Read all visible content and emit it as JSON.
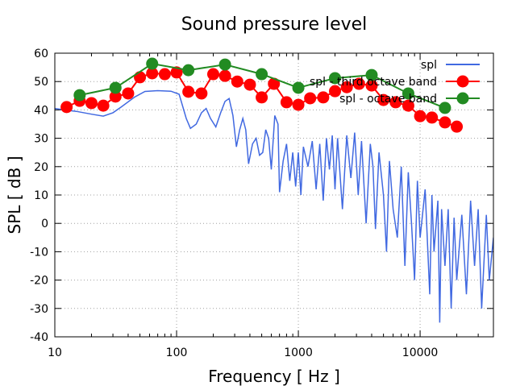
{
  "chart_data": {
    "type": "line",
    "title": "Sound pressure level",
    "xlabel": "Frequency [ Hz ]",
    "ylabel": "SPL [ dB ]",
    "xscale": "log",
    "xlim": [
      10,
      40000
    ],
    "ylim": [
      -40,
      60
    ],
    "xticks": [
      10,
      100,
      1000,
      10000
    ],
    "xtick_labels": [
      "10",
      "100",
      "1000",
      "10000"
    ],
    "yticks": [
      -40,
      -30,
      -20,
      -10,
      0,
      10,
      20,
      30,
      40,
      50,
      60
    ],
    "ytick_labels": [
      "-40",
      "-30",
      "-20",
      "-10",
      "0",
      "10",
      "20",
      "30",
      "40",
      "50",
      "60"
    ],
    "grid": true,
    "legend_position": "top-right",
    "series": [
      {
        "name": "spl",
        "color": "#4169e1",
        "marker": "none",
        "x": [
          10,
          12,
          15,
          20,
          25,
          30,
          35,
          45,
          55,
          70,
          90,
          105,
          120,
          130,
          145,
          160,
          175,
          190,
          210,
          230,
          250,
          270,
          290,
          310,
          330,
          350,
          370,
          390,
          420,
          450,
          480,
          510,
          540,
          570,
          600,
          640,
          680,
          700,
          750,
          800,
          850,
          900,
          950,
          1000,
          1050,
          1100,
          1200,
          1300,
          1400,
          1500,
          1600,
          1700,
          1800,
          1900,
          2000,
          2100,
          2300,
          2500,
          2700,
          2900,
          3100,
          3300,
          3600,
          3900,
          4100,
          4300,
          4600,
          5000,
          5300,
          5600,
          6000,
          6500,
          7000,
          7500,
          8000,
          8500,
          9000,
          9500,
          10000,
          11000,
          12000,
          12500,
          13000,
          14000,
          14500,
          15000,
          16000,
          17000,
          18000,
          19000,
          20000,
          22000,
          24000,
          26000,
          28000,
          30000,
          32000,
          35000,
          37000,
          40000
        ],
        "y": [
          40.5,
          40,
          39.5,
          38.5,
          37.8,
          39,
          41,
          44.5,
          46.5,
          46.8,
          46.6,
          45.5,
          37,
          33.5,
          35,
          39,
          40.5,
          37,
          34,
          39,
          43,
          44,
          38,
          27,
          33,
          37,
          33,
          21,
          28,
          30,
          24,
          25,
          33,
          30,
          19,
          38,
          35,
          11,
          22,
          28,
          15,
          25,
          13,
          25,
          10,
          27,
          20,
          29,
          12,
          28,
          8,
          30,
          19,
          31,
          12,
          30,
          5,
          31,
          16,
          32,
          10,
          29,
          0,
          28,
          20,
          -2,
          25,
          10,
          -10,
          22,
          5,
          -5,
          20,
          -15,
          18,
          0,
          -20,
          15,
          -5,
          12,
          -25,
          10,
          -10,
          8,
          -35,
          5,
          -15,
          5,
          -30,
          2,
          -20,
          3,
          -25,
          8,
          -15,
          5,
          -30,
          3,
          -20,
          -5
        ]
      },
      {
        "name": "spl - third octave band",
        "color": "#ff0000",
        "marker": "circle",
        "x": [
          12.5,
          16,
          20,
          25,
          31.5,
          40,
          50,
          63,
          80,
          100,
          125,
          160,
          200,
          250,
          315,
          400,
          500,
          630,
          800,
          1000,
          1250,
          1600,
          2000,
          2500,
          3150,
          4000,
          5000,
          6300,
          8000,
          10000,
          12500,
          16000,
          20000
        ],
        "y": [
          41,
          43.2,
          42.4,
          41.5,
          44.7,
          45.8,
          51.5,
          52.9,
          52.6,
          53.2,
          46.4,
          45.8,
          52.6,
          52,
          50,
          48.9,
          44.4,
          49.2,
          42.7,
          41.8,
          44.1,
          44.4,
          46.6,
          48,
          49.2,
          48.6,
          43.5,
          42.7,
          41.5,
          37.8,
          37.3,
          35.6,
          34.1
        ]
      },
      {
        "name": "spl - octave band",
        "color": "#228b22",
        "marker": "circle",
        "x": [
          16,
          31.5,
          63,
          125,
          250,
          500,
          1000,
          2000,
          4000,
          8000,
          16000
        ],
        "y": [
          45.2,
          47.8,
          56.3,
          54,
          56,
          52.6,
          47.8,
          51.2,
          52.3,
          45.8,
          40.7
        ]
      }
    ]
  }
}
